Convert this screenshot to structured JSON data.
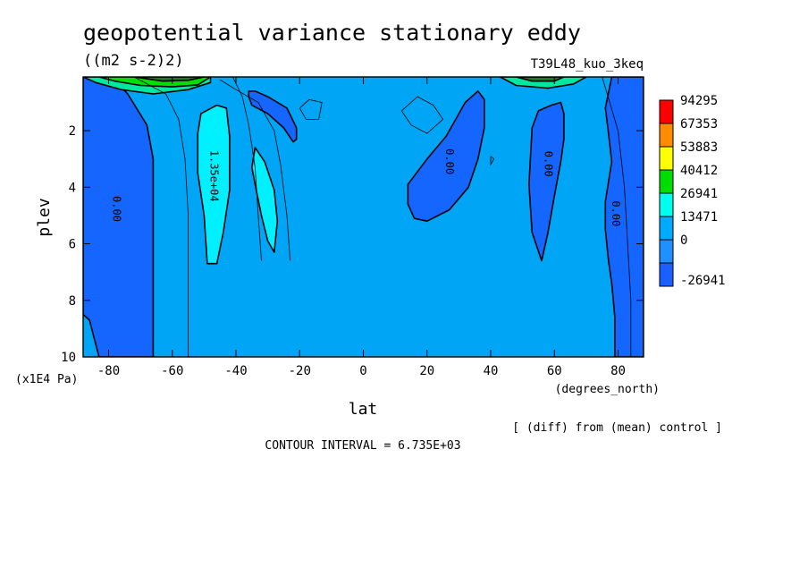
{
  "chart_data": {
    "type": "heatmap",
    "title": "geopotential variance stationary eddy",
    "units": "((m2 s-2)2)",
    "experiment": "T39L48_kuo_3keq",
    "xlabel": "lat",
    "xunits": "(degrees_north)",
    "ylabel": "plev",
    "yunits": "(x1E4 Pa)",
    "xlim": [
      -88,
      88
    ],
    "ylim": [
      10,
      0.1
    ],
    "xticks": [
      "-80",
      "-60",
      "-40",
      "-20",
      "0",
      "20",
      "40",
      "60",
      "80"
    ],
    "yticks": [
      "2",
      "4",
      "6",
      "8",
      "10"
    ],
    "contour_interval_text": "CONTOUR INTERVAL = 6.735E+03",
    "comparison_text": "[ (diff) from (mean) control ]",
    "colorbar": {
      "labels": [
        "94295",
        "67353",
        "53883",
        "40412",
        "26941",
        "13471",
        "0",
        "-26941"
      ],
      "colors": [
        "#ff0000",
        "#ff8c00",
        "#ffff00",
        "#00dd00",
        "#00ffee",
        "#00aaff",
        "#1e90ff",
        "#1a5fff"
      ]
    },
    "background_color": "#00a6f5",
    "regions": [
      {
        "label": "0.00",
        "fill": "#1565ff",
        "points": [
          [
            -88,
            0.1
          ],
          [
            -79,
            0.1
          ],
          [
            -74,
            0.7
          ],
          [
            -68,
            1.8
          ],
          [
            -66,
            3
          ],
          [
            -66,
            10
          ],
          [
            -83,
            10
          ],
          [
            -86,
            8.7
          ],
          [
            -88,
            8.5
          ]
        ]
      },
      {
        "label": "",
        "fill": "#1565ff",
        "points": [
          [
            -36,
            0.6
          ],
          [
            -34,
            0.6
          ],
          [
            -30,
            0.8
          ],
          [
            -24,
            1.2
          ],
          [
            -21,
            1.9
          ],
          [
            -21,
            2.3
          ],
          [
            -22,
            2.4
          ],
          [
            -25,
            1.9
          ],
          [
            -30,
            1.4
          ],
          [
            -35,
            1.1
          ],
          [
            -36,
            0.8
          ]
        ]
      },
      {
        "label": "1.35e+04",
        "fill": "#00f0ff",
        "points": [
          [
            -46,
            1.1
          ],
          [
            -43,
            1.2
          ],
          [
            -42,
            2.2
          ],
          [
            -42,
            4.1
          ],
          [
            -44,
            5.6
          ],
          [
            -46,
            6.7
          ],
          [
            -49,
            6.7
          ],
          [
            -50,
            5.0
          ],
          [
            -52,
            3.5
          ],
          [
            -52,
            2.1
          ],
          [
            -51,
            1.4
          ]
        ]
      },
      {
        "label": "",
        "fill": "#00f0ff",
        "points": [
          [
            -34,
            2.6
          ],
          [
            -31,
            3.1
          ],
          [
            -28,
            4.1
          ],
          [
            -27,
            5.2
          ],
          [
            -28,
            6.3
          ],
          [
            -30,
            5.9
          ],
          [
            -32,
            5.0
          ],
          [
            -34,
            3.9
          ],
          [
            -35,
            3.3
          ]
        ]
      },
      {
        "label": "0.00",
        "fill": "#1565ff",
        "points": [
          [
            36,
            0.6
          ],
          [
            38,
            0.9
          ],
          [
            38,
            1.9
          ],
          [
            36,
            3.0
          ],
          [
            33,
            4.0
          ],
          [
            27,
            4.8
          ],
          [
            20,
            5.2
          ],
          [
            16,
            5.1
          ],
          [
            14,
            4.6
          ],
          [
            14,
            3.9
          ],
          [
            20,
            3.0
          ],
          [
            26,
            2.2
          ],
          [
            32,
            1.0
          ]
        ]
      },
      {
        "label": "0.00",
        "fill": "#1565ff",
        "points": [
          [
            59,
            1.1
          ],
          [
            62,
            1.0
          ],
          [
            63,
            1.4
          ],
          [
            63,
            2.3
          ],
          [
            62,
            3.1
          ],
          [
            60,
            4.3
          ],
          [
            58,
            5.6
          ],
          [
            56,
            6.6
          ],
          [
            53,
            5.6
          ],
          [
            52,
            3.9
          ],
          [
            53,
            1.9
          ],
          [
            55,
            1.3
          ]
        ]
      },
      {
        "label": "0.00",
        "fill": "#1565ff",
        "points": [
          [
            78,
            0.1
          ],
          [
            88,
            0.1
          ],
          [
            88,
            10
          ],
          [
            79,
            10
          ],
          [
            79,
            8.6
          ],
          [
            78,
            7.4
          ],
          [
            77,
            6.6
          ],
          [
            76,
            5.5
          ],
          [
            76,
            4.5
          ],
          [
            78,
            3.1
          ],
          [
            77,
            2.1
          ],
          [
            76,
            1.2
          ]
        ]
      },
      {
        "label": "",
        "fill": "#00e8a0",
        "points": [
          [
            -88,
            0.1
          ],
          [
            -48,
            0.1
          ],
          [
            -48,
            0.3
          ],
          [
            -55,
            0.55
          ],
          [
            -66,
            0.7
          ],
          [
            -76,
            0.55
          ],
          [
            -84,
            0.3
          ]
        ]
      },
      {
        "label": "",
        "fill": "#00dd00",
        "points": [
          [
            -83,
            0.1
          ],
          [
            -48,
            0.1
          ],
          [
            -52,
            0.38
          ],
          [
            -60,
            0.45
          ],
          [
            -70,
            0.4
          ],
          [
            -78,
            0.25
          ]
        ]
      },
      {
        "label": "",
        "fill": "#1f7a1f",
        "points": [
          [
            -72,
            0.1
          ],
          [
            -50,
            0.1
          ],
          [
            -55,
            0.22
          ],
          [
            -63,
            0.25
          ]
        ]
      },
      {
        "label": "",
        "fill": "#00e8a0",
        "points": [
          [
            43,
            0.1
          ],
          [
            70,
            0.1
          ],
          [
            66,
            0.35
          ],
          [
            58,
            0.5
          ],
          [
            48,
            0.4
          ]
        ]
      },
      {
        "label": "",
        "fill": "#1f7a1f",
        "points": [
          [
            48,
            0.1
          ],
          [
            63,
            0.1
          ],
          [
            60,
            0.25
          ],
          [
            53,
            0.25
          ]
        ]
      }
    ],
    "contour_lines": [
      [
        [
          -72,
          0.1
        ],
        [
          -62,
          0.7
        ],
        [
          -58,
          1.6
        ],
        [
          -56,
          3.0
        ],
        [
          -55,
          5.0
        ],
        [
          -55,
          7.0
        ],
        [
          -55,
          10
        ]
      ],
      [
        [
          -45,
          0.2
        ],
        [
          -40,
          0.55
        ],
        [
          -33,
          1.0
        ],
        [
          -28,
          2.0
        ],
        [
          -26,
          3.2
        ],
        [
          -24,
          5.0
        ],
        [
          -23,
          6.6
        ]
      ],
      [
        [
          -41,
          0.1
        ],
        [
          -38,
          0.8
        ],
        [
          -36,
          1.8
        ],
        [
          -34,
          3.3
        ],
        [
          -33,
          5.0
        ],
        [
          -32,
          6.6
        ]
      ],
      [
        [
          -20,
          1.2
        ],
        [
          -17,
          0.9
        ],
        [
          -13,
          1.0
        ],
        [
          -14,
          1.6
        ],
        [
          -18,
          1.6
        ],
        [
          -20,
          1.2
        ]
      ],
      [
        [
          12,
          1.3
        ],
        [
          17,
          0.8
        ],
        [
          22,
          1.1
        ],
        [
          25,
          1.6
        ],
        [
          20,
          2.1
        ],
        [
          15,
          1.8
        ],
        [
          12,
          1.3
        ]
      ],
      [
        [
          40,
          2.9
        ],
        [
          41,
          3.0
        ],
        [
          40,
          3.2
        ],
        [
          40,
          2.9
        ]
      ],
      [
        [
          75,
          0.1
        ],
        [
          80,
          2.0
        ],
        [
          82,
          4.0
        ],
        [
          83,
          6.0
        ],
        [
          84,
          8.0
        ],
        [
          84,
          10
        ]
      ]
    ]
  }
}
